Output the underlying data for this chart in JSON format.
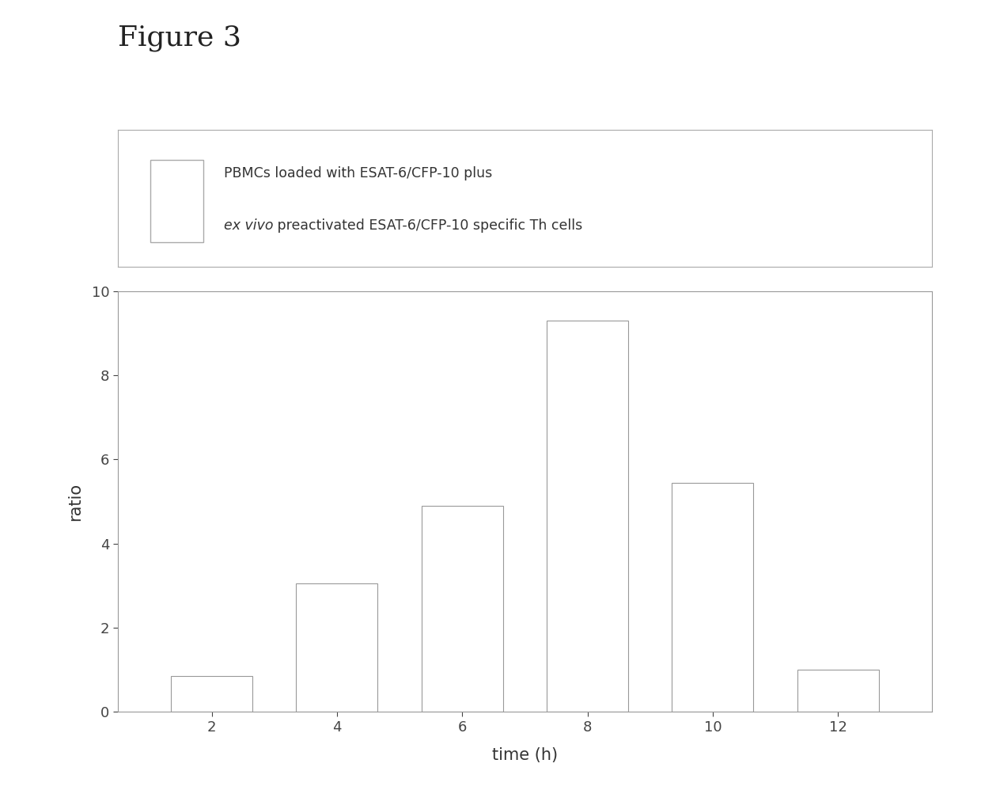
{
  "title": "Figure 3",
  "xlabel": "time (h)",
  "ylabel": "ratio",
  "x_values": [
    2,
    4,
    6,
    8,
    10,
    12
  ],
  "y_values": [
    0.85,
    3.05,
    4.9,
    9.3,
    5.45,
    1.0
  ],
  "bar_color": "#ffffff",
  "bar_edgecolor": "#999999",
  "bar_width": 1.3,
  "ylim": [
    0,
    10
  ],
  "yticks": [
    0,
    2,
    4,
    6,
    8,
    10
  ],
  "xticks": [
    2,
    4,
    6,
    8,
    10,
    12
  ],
  "legend_line1": "PBMCs loaded with ESAT-6/CFP-10 plus",
  "legend_line2_italic": "ex vivo",
  "legend_line2_rest": " preactivated ESAT-6/CFP-10 specific Th cells",
  "figure_bg": "#ffffff",
  "axis_linecolor": "#999999",
  "tick_color": "#444444",
  "text_color": "#333333",
  "label_fontsize": 15,
  "tick_fontsize": 13,
  "title_fontsize": 26,
  "legend_fontsize": 12.5
}
